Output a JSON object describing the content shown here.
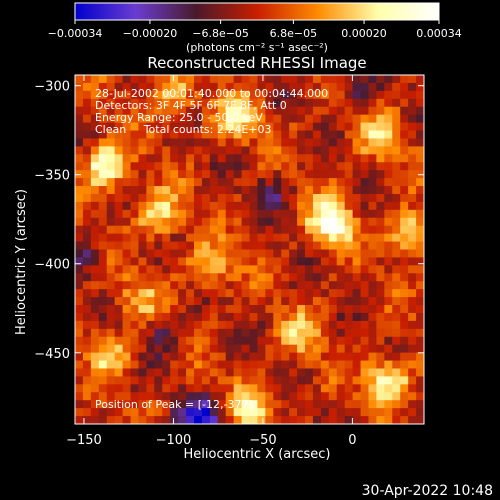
{
  "chart_data": {
    "type": "heatmap",
    "title": "Reconstructed RHESSI Image",
    "xlabel": "Heliocentric X (arcsec)",
    "ylabel": "Heliocentric Y (arcsec)",
    "xlim": [
      -155,
      40
    ],
    "ylim": [
      -490,
      -294
    ],
    "x_ticks": [
      -150,
      -100,
      -50,
      0
    ],
    "x_tick_labels": [
      "−150",
      "−100",
      "−50",
      "0"
    ],
    "y_ticks": [
      -300,
      -350,
      -400,
      -450
    ],
    "y_tick_labels": [
      "−300",
      "−350",
      "−400",
      "−450"
    ],
    "colorbar": {
      "range": [
        -0.00034,
        0.00034
      ],
      "ticks": [
        -0.00034,
        -0.0002,
        -6.8e-05,
        6.8e-05,
        0.0002,
        0.00034
      ],
      "tick_labels": [
        "−0.00034",
        "−0.00020",
        "−6.8e−05",
        "6.8e−05",
        "0.00020",
        "0.00034"
      ],
      "unit_label": "(photons cm⁻² s⁻¹ asec⁻²)",
      "colors": [
        "#0000cc",
        "#6a3cd0",
        "#4a1a2a",
        "#c81e00",
        "#ff8a00",
        "#ffffaa",
        "#ffffff"
      ]
    },
    "annotations": [
      "28-Jul-2002 00:01:40.000 to 00:04:44.000",
      "Detectors: 3F 4F 5F 6F 7F 8F, Att 0",
      "Energy Range: 25.0 - 50.0 keV",
      "Clean     Total counts: 2.24E+03"
    ],
    "peak_label": "Position of Peak = [-12,-377]",
    "peak_position": [
      -12,
      -377
    ],
    "hot_spots": [
      {
        "x": -12,
        "y": -377,
        "value": 0.00034
      },
      {
        "x": -138,
        "y": -345,
        "value": 0.0003
      },
      {
        "x": 20,
        "y": -465,
        "value": 0.00028
      },
      {
        "x": -108,
        "y": -372,
        "value": 0.00024
      },
      {
        "x": -65,
        "y": -318,
        "value": 0.00022
      },
      {
        "x": 32,
        "y": -382,
        "value": 0.00025
      },
      {
        "x": -135,
        "y": -450,
        "value": 0.00018
      },
      {
        "x": -55,
        "y": -480,
        "value": 0.0002
      },
      {
        "x": -80,
        "y": -402,
        "value": 0.00018
      },
      {
        "x": 15,
        "y": -330,
        "value": 0.00016
      },
      {
        "x": -30,
        "y": -440,
        "value": 0.00015
      },
      {
        "x": -100,
        "y": -305,
        "value": 0.00017
      },
      {
        "x": -120,
        "y": -420,
        "value": 0.00014
      }
    ],
    "cold_spots": [
      {
        "x": -85,
        "y": -488,
        "value": -0.00034
      },
      {
        "x": -105,
        "y": -440,
        "value": -0.00012
      },
      {
        "x": -45,
        "y": -360,
        "value": -0.0001
      },
      {
        "x": 5,
        "y": -300,
        "value": -0.00012
      },
      {
        "x": -150,
        "y": -395,
        "value": -0.0001
      }
    ]
  },
  "footer": {
    "timestamp": "30-Apr-2022 10:48"
  }
}
